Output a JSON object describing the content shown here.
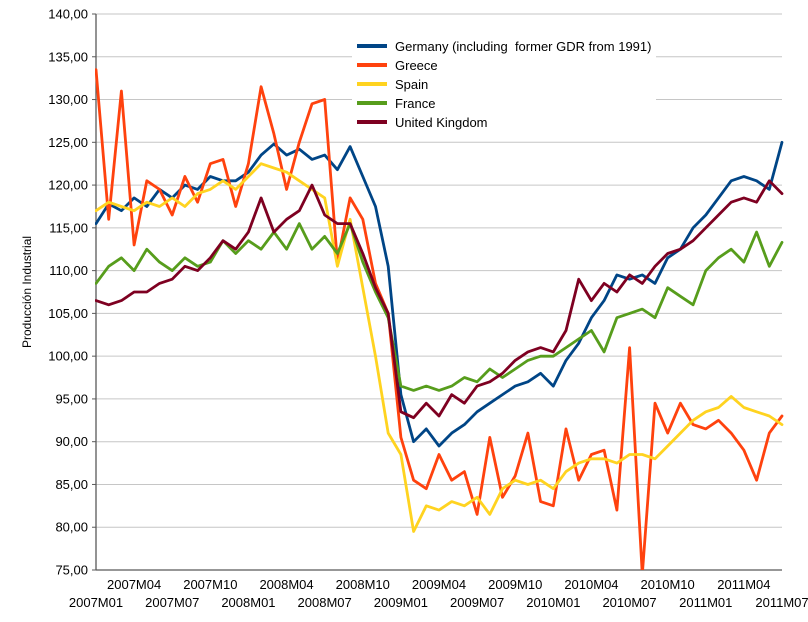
{
  "chart_data": {
    "type": "line",
    "title": "",
    "xlabel": "",
    "ylabel": "Producción Industrial",
    "ylim": [
      75,
      140
    ],
    "grid": true,
    "grid_color": "#C6C6C6",
    "axis_color": "#595959",
    "legend_position": "top-inside",
    "yticks": [
      75,
      80,
      85,
      90,
      95,
      100,
      105,
      110,
      115,
      120,
      125,
      130,
      135,
      140
    ],
    "ytick_format": "comma-decimal-2",
    "x": [
      "2007M01",
      "2007M02",
      "2007M03",
      "2007M04",
      "2007M05",
      "2007M06",
      "2007M07",
      "2007M08",
      "2007M09",
      "2007M10",
      "2007M11",
      "2007M12",
      "2008M01",
      "2008M02",
      "2008M03",
      "2008M04",
      "2008M05",
      "2008M06",
      "2008M07",
      "2008M08",
      "2008M09",
      "2008M10",
      "2008M11",
      "2008M12",
      "2009M01",
      "2009M02",
      "2009M03",
      "2009M04",
      "2009M05",
      "2009M06",
      "2009M07",
      "2009M08",
      "2009M09",
      "2009M10",
      "2009M11",
      "2009M12",
      "2010M01",
      "2010M02",
      "2010M03",
      "2010M04",
      "2010M05",
      "2010M06",
      "2010M07",
      "2010M08",
      "2010M09",
      "2010M10",
      "2010M11",
      "2010M12",
      "2011M01",
      "2011M02",
      "2011M03",
      "2011M04",
      "2011M05",
      "2011M06",
      "2011M07"
    ],
    "xticks_upper": [
      "2007M04",
      "2007M10",
      "2008M04",
      "2008M10",
      "2009M04",
      "2009M10",
      "2010M04",
      "2010M10",
      "2011M04"
    ],
    "xticks_lower": [
      "2007M01",
      "2007M07",
      "2008M01",
      "2008M07",
      "2009M01",
      "2009M07",
      "2010M01",
      "2010M07",
      "2011M01",
      "2011M07"
    ],
    "series": [
      {
        "name": "Germany (including  former GDR from 1991)",
        "color": "#004586",
        "values": [
          115.5,
          117.8,
          117.0,
          118.5,
          117.5,
          119.5,
          118.5,
          120.0,
          119.5,
          121.0,
          120.5,
          120.5,
          121.5,
          123.5,
          124.8,
          123.5,
          124.2,
          123.0,
          123.5,
          121.8,
          124.5,
          121.0,
          117.5,
          110.5,
          95.5,
          90.0,
          91.5,
          89.5,
          91.0,
          92.0,
          93.5,
          94.5,
          95.5,
          96.5,
          97.0,
          98.0,
          96.5,
          99.5,
          101.5,
          104.5,
          106.5,
          109.5,
          109.0,
          109.5,
          108.5,
          111.5,
          112.5,
          115.0,
          116.5,
          118.5,
          120.5,
          121.0,
          120.5,
          119.5,
          125.0
        ]
      },
      {
        "name": "Greece",
        "color": "#FF420E",
        "values": [
          133.5,
          116.0,
          131.0,
          113.0,
          120.5,
          119.5,
          116.5,
          121.0,
          118.0,
          122.5,
          123.0,
          117.5,
          122.5,
          131.5,
          126.0,
          119.5,
          125.0,
          129.5,
          130.0,
          111.0,
          118.5,
          116.0,
          108.5,
          105.0,
          90.5,
          85.5,
          84.5,
          88.5,
          85.5,
          86.5,
          81.5,
          90.5,
          83.5,
          86.0,
          91.0,
          83.0,
          82.5,
          91.5,
          85.5,
          88.5,
          89.0,
          82.0,
          101.0,
          74.5,
          94.5,
          91.0,
          94.5,
          92.0,
          91.5,
          92.5,
          91.0,
          89.0,
          85.5,
          91.0,
          93.0
        ]
      },
      {
        "name": "Spain",
        "color": "#FFD320",
        "values": [
          117.0,
          118.0,
          117.5,
          117.0,
          118.0,
          117.5,
          118.5,
          117.5,
          119.0,
          119.5,
          120.5,
          119.5,
          121.0,
          122.5,
          122.0,
          121.5,
          120.5,
          119.5,
          118.5,
          110.5,
          116.0,
          108.0,
          100.0,
          91.0,
          88.5,
          79.5,
          82.5,
          82.0,
          83.0,
          82.5,
          83.5,
          81.5,
          84.5,
          85.5,
          85.0,
          85.5,
          84.5,
          86.5,
          87.5,
          88.0,
          88.0,
          87.5,
          88.5,
          88.5,
          88.0,
          89.5,
          91.0,
          92.5,
          93.5,
          94.0,
          95.3,
          94.0,
          93.5,
          93.0,
          92.0
        ]
      },
      {
        "name": "France",
        "color": "#579D1C",
        "values": [
          108.5,
          110.5,
          111.5,
          110.0,
          112.5,
          111.0,
          110.0,
          111.5,
          110.5,
          111.0,
          113.5,
          112.0,
          113.5,
          112.5,
          114.5,
          112.5,
          115.5,
          112.5,
          114.0,
          112.0,
          115.5,
          111.0,
          107.5,
          104.5,
          96.5,
          96.0,
          96.5,
          96.0,
          96.5,
          97.5,
          97.0,
          98.5,
          97.5,
          98.5,
          99.5,
          100.0,
          100.0,
          101.0,
          102.0,
          103.0,
          100.5,
          104.5,
          105.0,
          105.5,
          104.5,
          108.0,
          107.0,
          106.0,
          110.0,
          111.5,
          112.5,
          111.0,
          114.5,
          110.5,
          113.3
        ]
      },
      {
        "name": "United Kingdom",
        "color": "#7E0021",
        "values": [
          106.5,
          106.0,
          106.5,
          107.5,
          107.5,
          108.5,
          109.0,
          110.5,
          110.0,
          111.5,
          113.5,
          112.5,
          114.5,
          118.5,
          114.5,
          116.0,
          117.0,
          120.0,
          116.5,
          115.5,
          115.5,
          112.0,
          108.0,
          105.0,
          93.5,
          92.8,
          94.5,
          93.0,
          95.5,
          94.5,
          96.5,
          97.0,
          98.0,
          99.5,
          100.5,
          101.0,
          100.5,
          103.0,
          109.0,
          106.5,
          108.5,
          107.5,
          109.5,
          108.5,
          110.5,
          112.0,
          112.5,
          113.5,
          115.0,
          116.5,
          118.0,
          118.5,
          118.0,
          120.5,
          119.0
        ]
      }
    ]
  }
}
